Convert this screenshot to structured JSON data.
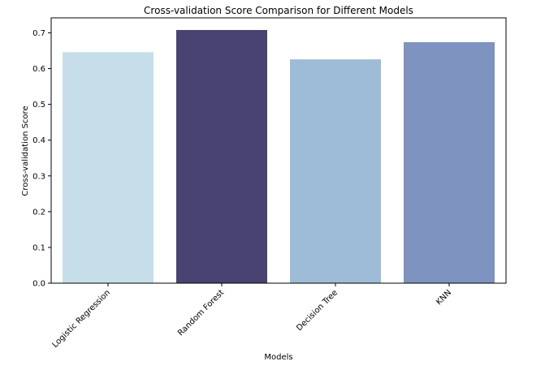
{
  "chart_data": {
    "type": "bar",
    "title": "Cross-validation Score Comparison for Different Models",
    "xlabel": "Models",
    "ylabel": "Cross-validation Score",
    "categories": [
      "Logistic Regression",
      "Random Forest",
      "Decision Tree",
      "KNN"
    ],
    "values": [
      0.646,
      0.708,
      0.626,
      0.674
    ],
    "colors": [
      "#c6dee9",
      "#484371",
      "#9ebbd7",
      "#7f93c0"
    ],
    "ylim": [
      0,
      0.742
    ],
    "yticks": [
      0.0,
      0.1,
      0.2,
      0.3,
      0.4,
      0.5,
      0.6,
      0.7
    ],
    "ytick_labels": [
      "0.0",
      "0.1",
      "0.2",
      "0.3",
      "0.4",
      "0.5",
      "0.6",
      "0.7"
    ],
    "grid": false,
    "legend": "none"
  }
}
